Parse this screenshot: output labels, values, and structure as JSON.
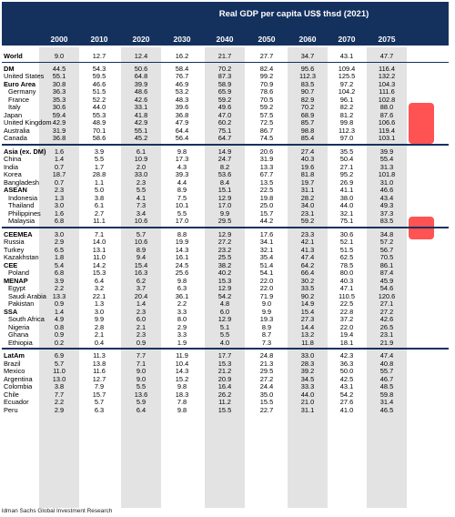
{
  "title": "Real GDP per capita US$ thsd (2021)",
  "years": [
    "2000",
    "2010",
    "2020",
    "2030",
    "2040",
    "2050",
    "2060",
    "2070",
    "2075"
  ],
  "source": "ldman Sachs Global Investment Research",
  "highlight_color": "#ff1a1a",
  "header_color": "#14315e",
  "highlighted_cells": [
    {
      "row": "Italy",
      "year": "2075"
    },
    {
      "row": "Japan",
      "year": "2075"
    },
    {
      "row": "United Kingdom",
      "year": "2075"
    },
    {
      "row": "Australia",
      "year": "2075"
    },
    {
      "row": "Canada",
      "year": "2075"
    },
    {
      "row": "Malaysia",
      "year": "2075"
    },
    {
      "row": "CEEMEA",
      "year": "2075"
    }
  ],
  "rows": [
    {
      "label": "World",
      "bold": true,
      "vals": [
        "9.0",
        "12.7",
        "12.4",
        "16.2",
        "21.7",
        "27.7",
        "34.7",
        "43.1",
        "47.7"
      ]
    },
    {
      "label": "DM",
      "bold": true,
      "vals": [
        "44.5",
        "54.3",
        "50.6",
        "58.4",
        "70.2",
        "82.4",
        "95.6",
        "109.4",
        "116.4"
      ]
    },
    {
      "label": "United States",
      "vals": [
        "55.1",
        "59.5",
        "64.8",
        "76.7",
        "87.3",
        "99.2",
        "112.3",
        "125.5",
        "132.2"
      ]
    },
    {
      "label": "Euro Area",
      "bold": true,
      "vals": [
        "30.8",
        "46.6",
        "39.9",
        "46.9",
        "58.9",
        "70.9",
        "83.5",
        "97.2",
        "104.3"
      ]
    },
    {
      "label": "Germany",
      "ind": true,
      "vals": [
        "36.3",
        "51.5",
        "48.6",
        "53.2",
        "65.9",
        "78.6",
        "90.7",
        "104.2",
        "111.6"
      ]
    },
    {
      "label": "France",
      "ind": true,
      "vals": [
        "35.3",
        "52.2",
        "42.6",
        "48.3",
        "59.2",
        "70.5",
        "82.9",
        "96.1",
        "102.8"
      ]
    },
    {
      "label": "Italy",
      "ind": true,
      "vals": [
        "30.6",
        "44.0",
        "33.1",
        "39.6",
        "49.6",
        "59.2",
        "70.2",
        "82.2",
        "88.0"
      ]
    },
    {
      "label": "Japan",
      "vals": [
        "59.4",
        "55.3",
        "41.8",
        "36.8",
        "47.0",
        "57.5",
        "68.9",
        "81.2",
        "87.6"
      ]
    },
    {
      "label": "United Kingdom",
      "vals": [
        "42.9",
        "48.9",
        "42.9",
        "47.9",
        "60.2",
        "72.5",
        "85.7",
        "99.8",
        "106.6"
      ]
    },
    {
      "label": "Australia",
      "vals": [
        "31.9",
        "70.1",
        "55.1",
        "64.4",
        "75.1",
        "86.7",
        "98.8",
        "112.3",
        "119.4"
      ]
    },
    {
      "label": "Canada",
      "vals": [
        "36.8",
        "58.6",
        "45.2",
        "56.4",
        "64.7",
        "74.5",
        "85.4",
        "97.0",
        "103.1"
      ]
    },
    {
      "label": "Asia (ex. DM)",
      "bold": true,
      "vals": [
        "1.6",
        "3.9",
        "6.1",
        "9.8",
        "14.9",
        "20.6",
        "27.4",
        "35.5",
        "39.9"
      ]
    },
    {
      "label": "China",
      "vals": [
        "1.4",
        "5.5",
        "10.9",
        "17.3",
        "24.7",
        "31.9",
        "40.3",
        "50.4",
        "55.4"
      ]
    },
    {
      "label": "India",
      "vals": [
        "0.7",
        "1.7",
        "2.0",
        "4.3",
        "8.2",
        "13.3",
        "19.6",
        "27.1",
        "31.3"
      ]
    },
    {
      "label": "Korea",
      "vals": [
        "18.7",
        "28.8",
        "33.0",
        "39.3",
        "53.6",
        "67.7",
        "81.8",
        "95.2",
        "101.8"
      ]
    },
    {
      "label": "Bangladesh",
      "vals": [
        "0.7",
        "1.1",
        "2.3",
        "4.4",
        "8.4",
        "13.5",
        "19.7",
        "26.9",
        "31.0"
      ]
    },
    {
      "label": "ASEAN",
      "bold": true,
      "vals": [
        "2.3",
        "5.0",
        "5.5",
        "8.9",
        "15.1",
        "22.5",
        "31.1",
        "41.1",
        "46.6"
      ]
    },
    {
      "label": "Indonesia",
      "ind": true,
      "vals": [
        "1.3",
        "3.8",
        "4.1",
        "7.5",
        "12.9",
        "19.8",
        "28.2",
        "38.0",
        "43.4"
      ]
    },
    {
      "label": "Thailand",
      "ind": true,
      "vals": [
        "3.0",
        "6.1",
        "7.3",
        "10.1",
        "17.0",
        "25.0",
        "34.0",
        "44.0",
        "49.3"
      ]
    },
    {
      "label": "Philippines",
      "ind": true,
      "vals": [
        "1.6",
        "2.7",
        "3.4",
        "5.5",
        "9.9",
        "15.7",
        "23.1",
        "32.1",
        "37.3"
      ]
    },
    {
      "label": "Malaysia",
      "ind": true,
      "vals": [
        "6.8",
        "11.1",
        "10.6",
        "17.0",
        "29.5",
        "44.2",
        "59.2",
        "75.1",
        "83.5"
      ]
    },
    {
      "label": "CEEMEA",
      "bold": true,
      "vals": [
        "3.0",
        "7.1",
        "5.7",
        "8.8",
        "12.9",
        "17.6",
        "23.3",
        "30.6",
        "34.8"
      ]
    },
    {
      "label": "Russia",
      "vals": [
        "2.9",
        "14.0",
        "10.6",
        "19.9",
        "27.2",
        "34.1",
        "42.1",
        "52.1",
        "57.2"
      ]
    },
    {
      "label": "Turkey",
      "vals": [
        "6.5",
        "13.1",
        "8.9",
        "14.3",
        "23.2",
        "32.1",
        "41.3",
        "51.5",
        "56.7"
      ]
    },
    {
      "label": "Kazakhstan",
      "vals": [
        "1.8",
        "11.0",
        "9.4",
        "16.1",
        "25.5",
        "35.4",
        "47.4",
        "62.5",
        "70.5"
      ]
    },
    {
      "label": "CEE",
      "bold": true,
      "vals": [
        "5.4",
        "14.2",
        "15.4",
        "24.5",
        "38.2",
        "51.4",
        "64.2",
        "78.5",
        "86.1"
      ]
    },
    {
      "label": "Poland",
      "ind": true,
      "vals": [
        "6.8",
        "15.3",
        "16.3",
        "25.6",
        "40.2",
        "54.1",
        "66.4",
        "80.0",
        "87.4"
      ]
    },
    {
      "label": "MENAP",
      "bold": true,
      "vals": [
        "3.9",
        "6.4",
        "6.2",
        "9.8",
        "15.3",
        "22.0",
        "30.2",
        "40.3",
        "45.9"
      ]
    },
    {
      "label": "Egypt",
      "ind": true,
      "vals": [
        "2.2",
        "3.2",
        "3.7",
        "6.3",
        "12.9",
        "22.0",
        "33.5",
        "47.1",
        "54.6"
      ]
    },
    {
      "label": "Saudi Arabia",
      "ind": true,
      "vals": [
        "13.3",
        "22.1",
        "20.4",
        "36.1",
        "54.2",
        "71.9",
        "90.2",
        "110.5",
        "120.6"
      ]
    },
    {
      "label": "Pakistan",
      "ind": true,
      "vals": [
        "0.9",
        "1.3",
        "1.4",
        "2.2",
        "4.8",
        "9.0",
        "14.9",
        "22.5",
        "27.1"
      ]
    },
    {
      "label": "SSA",
      "bold": true,
      "vals": [
        "1.4",
        "3.0",
        "2.3",
        "3.3",
        "6.0",
        "9.9",
        "15.4",
        "22.8",
        "27.2"
      ]
    },
    {
      "label": "South Africa",
      "ind": true,
      "vals": [
        "4.9",
        "9.9",
        "6.0",
        "8.0",
        "12.9",
        "19.3",
        "27.3",
        "37.2",
        "42.6"
      ]
    },
    {
      "label": "Nigeria",
      "ind": true,
      "vals": [
        "0.8",
        "2.8",
        "2.1",
        "2.9",
        "5.1",
        "8.9",
        "14.4",
        "22.0",
        "26.5"
      ]
    },
    {
      "label": "Ghana",
      "ind": true,
      "vals": [
        "0.9",
        "2.1",
        "2.3",
        "3.3",
        "5.5",
        "8.7",
        "13.2",
        "19.4",
        "23.1"
      ]
    },
    {
      "label": "Ethiopia",
      "ind": true,
      "vals": [
        "0.2",
        "0.4",
        "0.9",
        "1.9",
        "4.0",
        "7.3",
        "11.8",
        "18.1",
        "21.9"
      ]
    },
    {
      "label": "LatAm",
      "bold": true,
      "vals": [
        "6.9",
        "11.3",
        "7.7",
        "11.9",
        "17.7",
        "24.8",
        "33.0",
        "42.3",
        "47.4"
      ]
    },
    {
      "label": "Brazil",
      "vals": [
        "5.7",
        "13.8",
        "7.1",
        "10.4",
        "15.3",
        "21.3",
        "28.3",
        "36.3",
        "40.8"
      ]
    },
    {
      "label": "Mexico",
      "vals": [
        "11.0",
        "11.6",
        "9.0",
        "14.3",
        "21.2",
        "29.5",
        "39.2",
        "50.0",
        "55.7"
      ]
    },
    {
      "label": "Argentina",
      "vals": [
        "13.0",
        "12.7",
        "9.0",
        "15.2",
        "20.9",
        "27.2",
        "34.5",
        "42.5",
        "46.7"
      ]
    },
    {
      "label": "Colombia",
      "vals": [
        "3.8",
        "7.9",
        "5.5",
        "9.8",
        "16.4",
        "24.4",
        "33.3",
        "43.1",
        "48.5"
      ]
    },
    {
      "label": "Chile",
      "vals": [
        "7.7",
        "15.7",
        "13.6",
        "18.3",
        "26.2",
        "35.0",
        "44.0",
        "54.2",
        "59.8"
      ]
    },
    {
      "label": "Ecuador",
      "vals": [
        "2.2",
        "5.7",
        "5.9",
        "7.8",
        "11.2",
        "15.5",
        "21.0",
        "27.6",
        "31.4"
      ]
    },
    {
      "label": "Peru",
      "vals": [
        "2.9",
        "6.3",
        "6.4",
        "9.8",
        "15.5",
        "22.7",
        "31.1",
        "41.0",
        "46.5"
      ]
    }
  ]
}
